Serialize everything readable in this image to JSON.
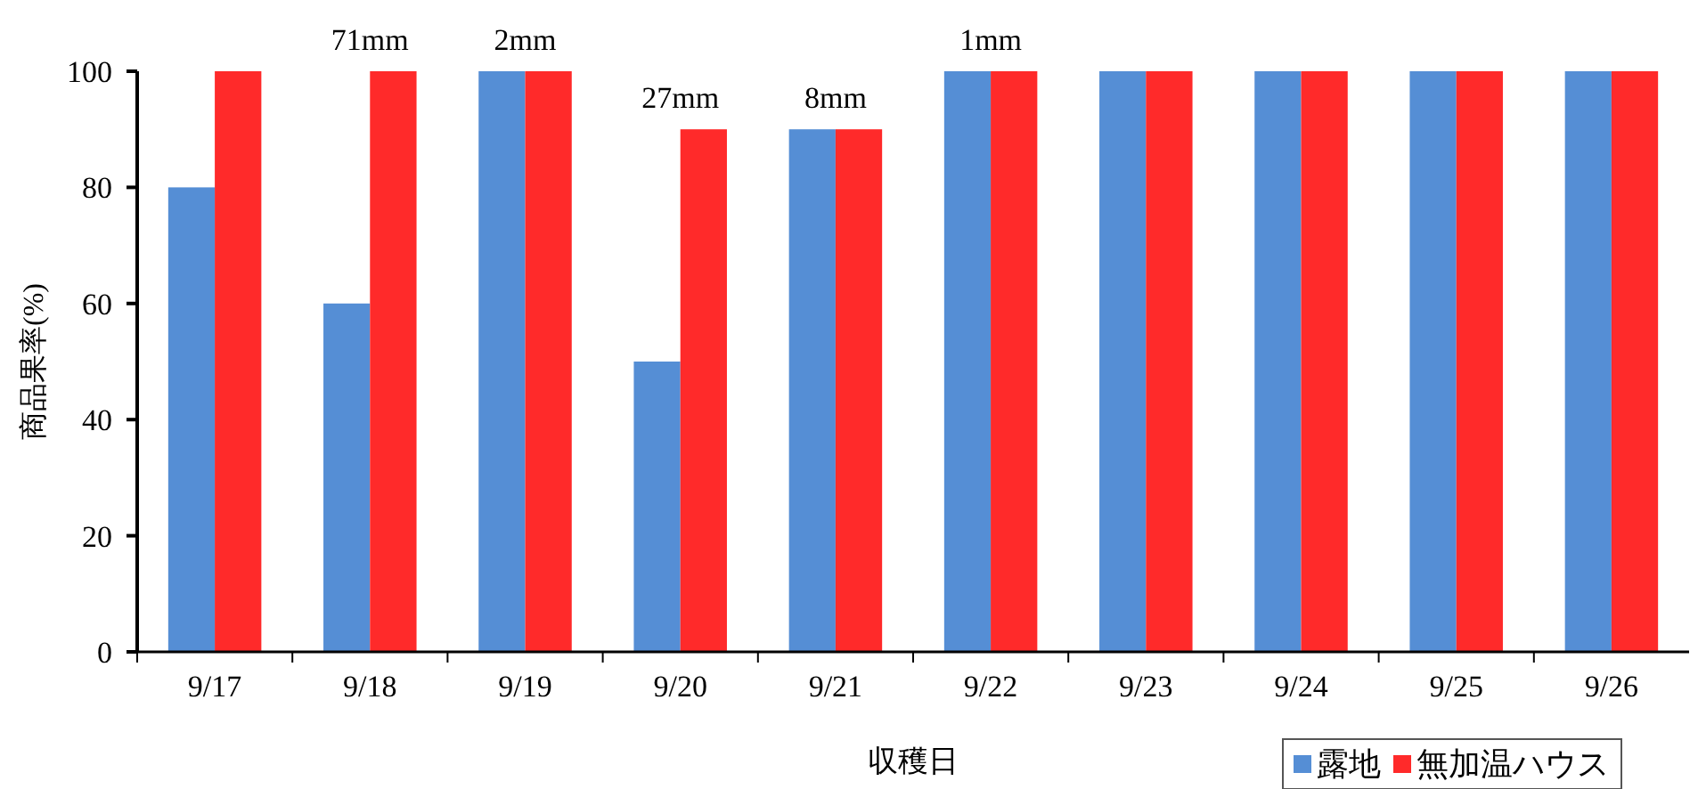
{
  "chart_data": {
    "type": "bar",
    "xlabel": "収穫日",
    "ylabel": "商品果率(%)",
    "categories": [
      "9/17",
      "9/18",
      "9/19",
      "9/20",
      "9/21",
      "9/22",
      "9/23",
      "9/24",
      "9/25",
      "9/26"
    ],
    "series": [
      {
        "name": "露地",
        "color": "#558ed5",
        "values": [
          80,
          60,
          100,
          50,
          90,
          100,
          100,
          100,
          100,
          100
        ]
      },
      {
        "name": "無加温ハウス",
        "color": "#ff2a2a",
        "values": [
          100,
          100,
          100,
          90,
          90,
          100,
          100,
          100,
          100,
          100
        ]
      }
    ],
    "ylim": [
      0,
      100
    ],
    "yticks": [
      0,
      20,
      40,
      60,
      80,
      100
    ],
    "grid": false,
    "legend": "bottom right",
    "annotations": [
      "71mm",
      "2mm",
      "27mm",
      "8mm",
      "1mm"
    ]
  }
}
